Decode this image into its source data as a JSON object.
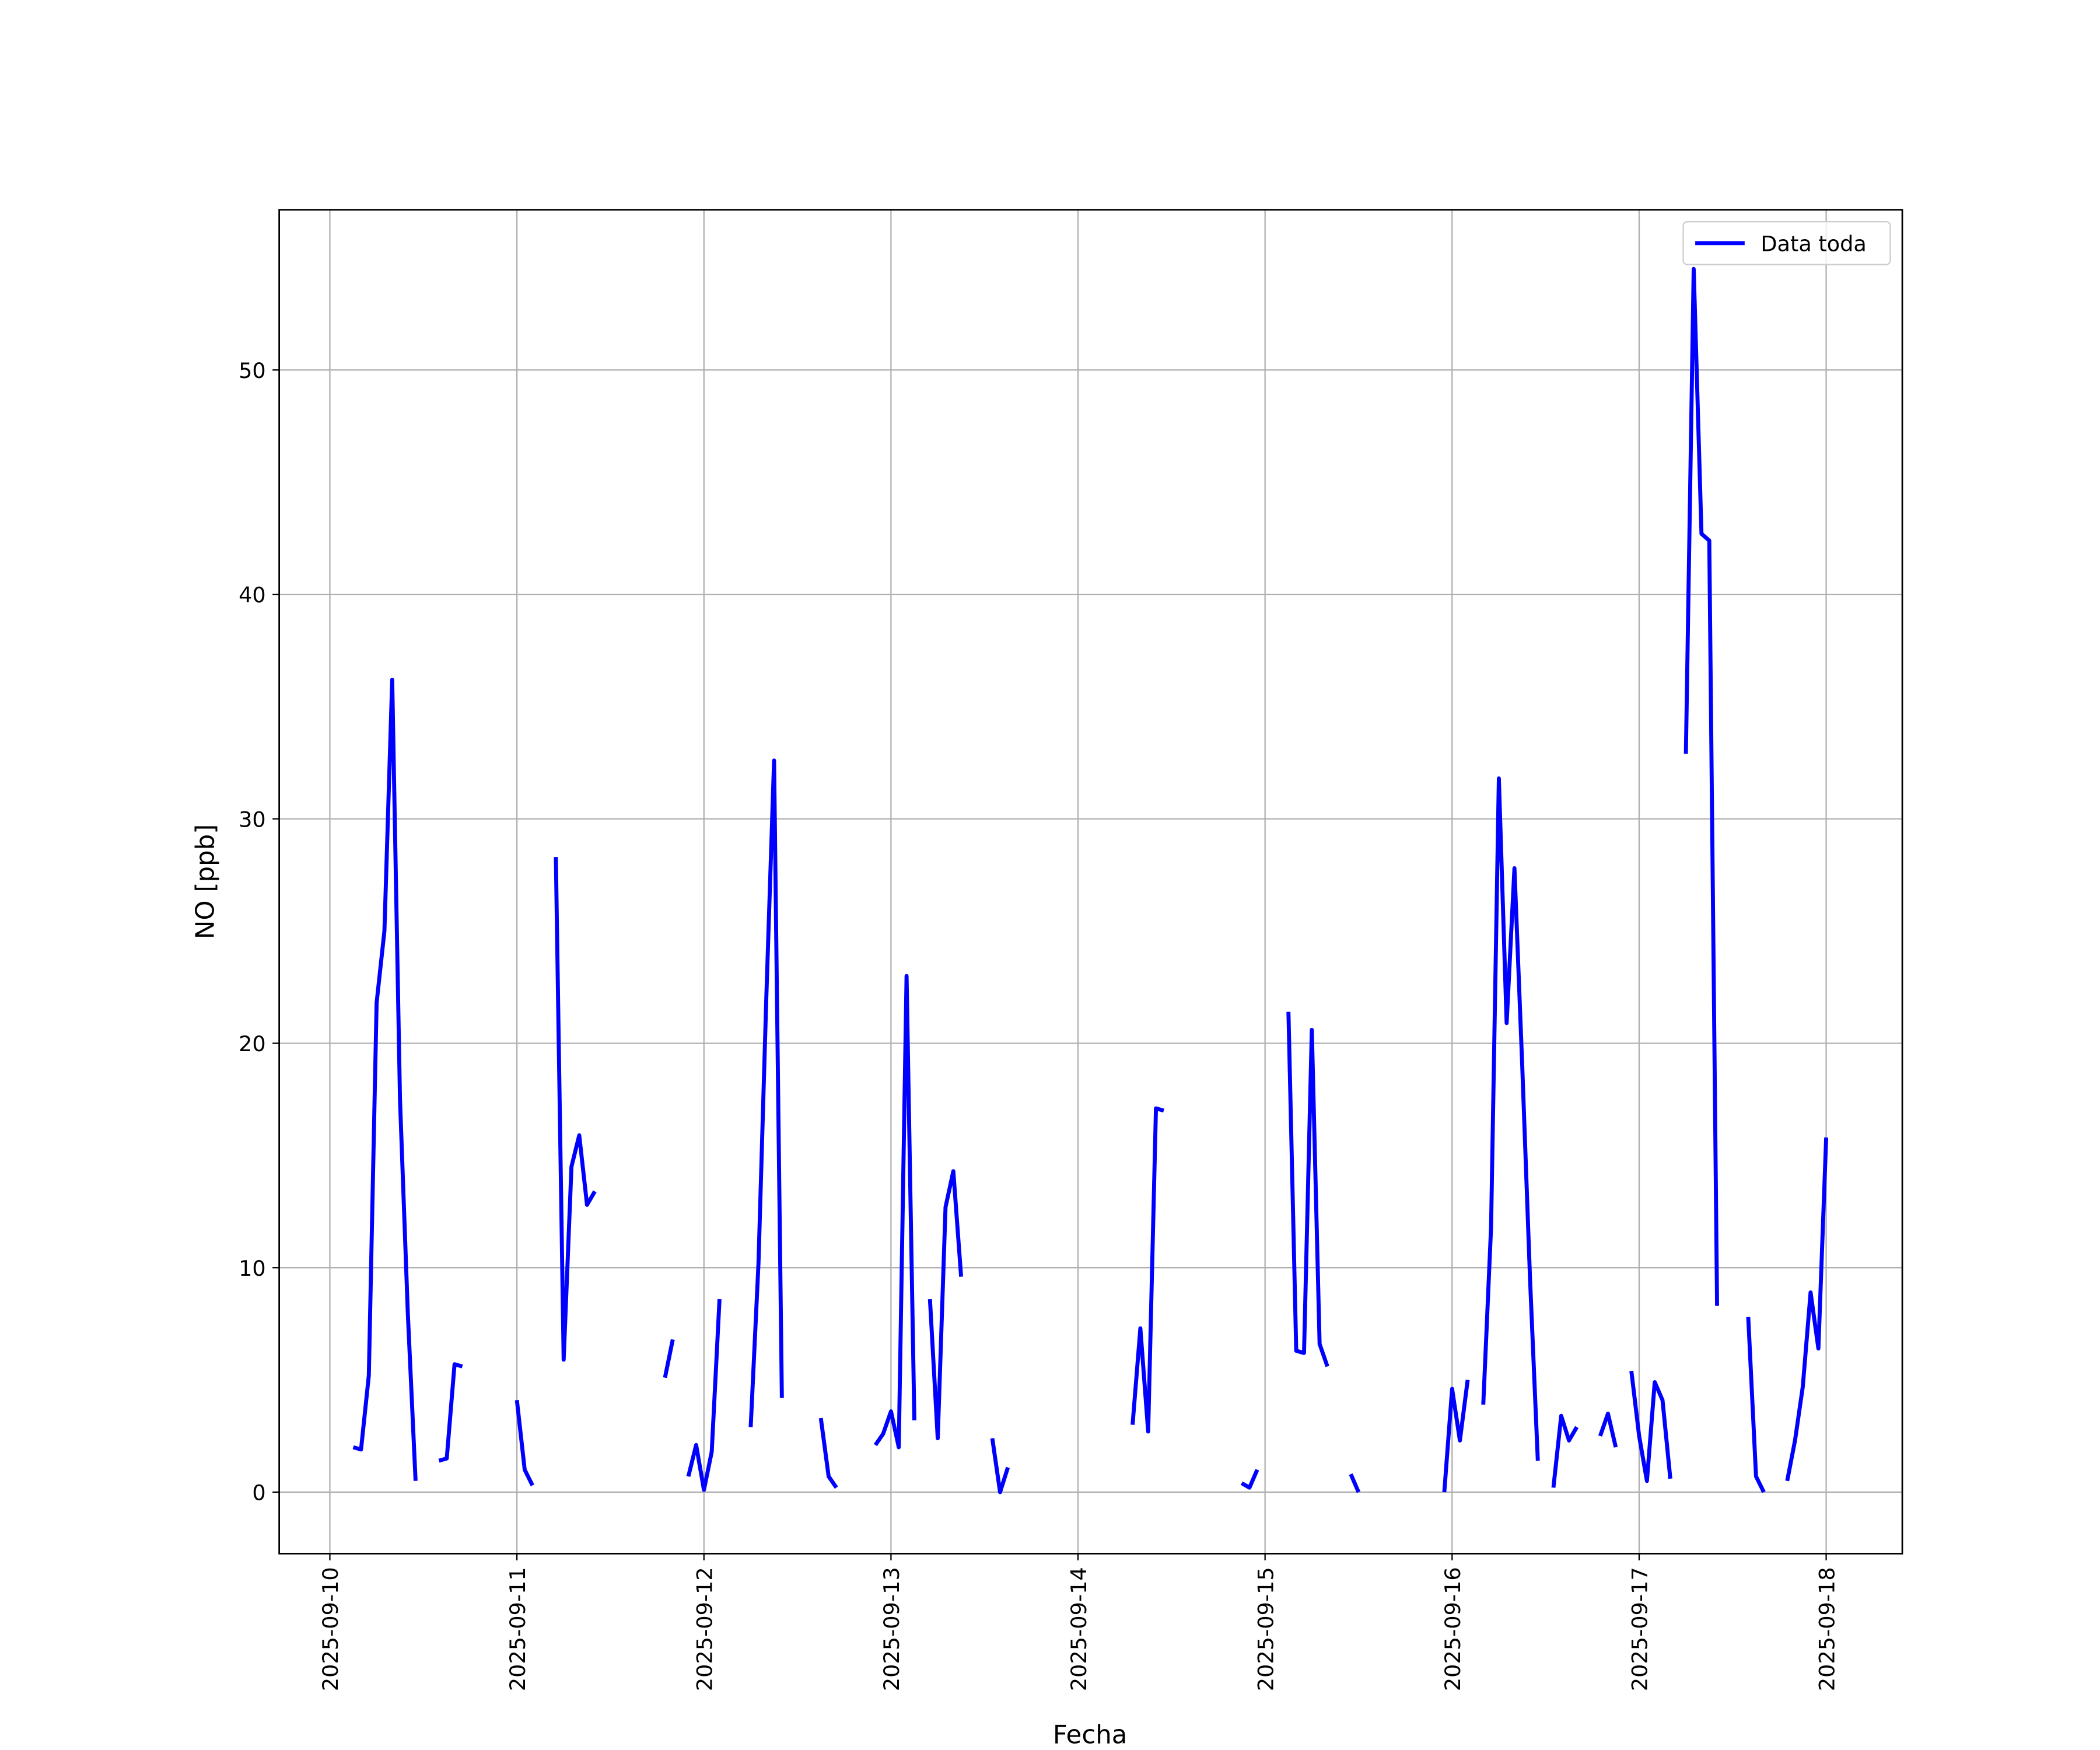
{
  "chart_data": {
    "type": "line",
    "x_label": "Fecha",
    "y_label": "NO [ppb]",
    "xlim": [
      "2025-09-09 17:30",
      "2025-09-18 09:46"
    ],
    "xticks": [
      "2025-09-10",
      "2025-09-11",
      "2025-09-12",
      "2025-09-13",
      "2025-09-14",
      "2025-09-15",
      "2025-09-16",
      "2025-09-17",
      "2025-09-18"
    ],
    "ylim": [
      -2.74,
      57.14
    ],
    "yticks": [
      0,
      10,
      20,
      30,
      40,
      50
    ],
    "grid": true,
    "legend": "upper right",
    "x": [
      "2025-09-10 03:00",
      "2025-09-10 04:00",
      "2025-09-10 05:00",
      "2025-09-10 06:00",
      "2025-09-10 07:00",
      "2025-09-10 08:00",
      "2025-09-10 09:00",
      "2025-09-10 10:00",
      "2025-09-10 11:00",
      "2025-09-10 12:00",
      "2025-09-10 14:00",
      "2025-09-10 15:00",
      "2025-09-10 16:00",
      "2025-09-10 17:00",
      "2025-09-10 18:00",
      "2025-09-11 00:00",
      "2025-09-11 01:00",
      "2025-09-11 02:00",
      "2025-09-11 03:00",
      "2025-09-11 05:00",
      "2025-09-11 06:00",
      "2025-09-11 07:00",
      "2025-09-11 08:00",
      "2025-09-11 09:00",
      "2025-09-11 10:00",
      "2025-09-11 11:00",
      "2025-09-11 19:00",
      "2025-09-11 20:00",
      "2025-09-11 21:00",
      "2025-09-11 22:00",
      "2025-09-11 23:00",
      "2025-09-12 00:00",
      "2025-09-12 01:00",
      "2025-09-12 02:00",
      "2025-09-12 03:00",
      "2025-09-12 06:00",
      "2025-09-12 07:00",
      "2025-09-12 08:00",
      "2025-09-12 09:00",
      "2025-09-12 10:00",
      "2025-09-12 11:00",
      "2025-09-12 15:00",
      "2025-09-12 16:00",
      "2025-09-12 17:00",
      "2025-09-12 18:00",
      "2025-09-12 22:00",
      "2025-09-12 23:00",
      "2025-09-13 00:00",
      "2025-09-13 01:00",
      "2025-09-13 02:00",
      "2025-09-13 03:00",
      "2025-09-13 04:00",
      "2025-09-13 05:00",
      "2025-09-13 06:00",
      "2025-09-13 07:00",
      "2025-09-13 08:00",
      "2025-09-13 09:00",
      "2025-09-13 10:00",
      "2025-09-13 13:00",
      "2025-09-13 14:00",
      "2025-09-13 15:00",
      "2025-09-13 16:00",
      "2025-09-14 07:00",
      "2025-09-14 08:00",
      "2025-09-14 09:00",
      "2025-09-14 10:00",
      "2025-09-14 11:00",
      "2025-09-14 12:00",
      "2025-09-14 21:00",
      "2025-09-14 22:00",
      "2025-09-14 23:00",
      "2025-09-15 00:00",
      "2025-09-15 03:00",
      "2025-09-15 04:00",
      "2025-09-15 05:00",
      "2025-09-15 06:00",
      "2025-09-15 07:00",
      "2025-09-15 08:00",
      "2025-09-15 09:00",
      "2025-09-15 11:00",
      "2025-09-15 12:00",
      "2025-09-15 13:00",
      "2025-09-15 23:00",
      "2025-09-16 00:00",
      "2025-09-16 01:00",
      "2025-09-16 02:00",
      "2025-09-16 03:00",
      "2025-09-16 04:00",
      "2025-09-16 05:00",
      "2025-09-16 06:00",
      "2025-09-16 07:00",
      "2025-09-16 08:00",
      "2025-09-16 09:00",
      "2025-09-16 10:00",
      "2025-09-16 11:00",
      "2025-09-16 12:00",
      "2025-09-16 13:00",
      "2025-09-16 14:00",
      "2025-09-16 15:00",
      "2025-09-16 16:00",
      "2025-09-16 17:00",
      "2025-09-16 19:00",
      "2025-09-16 20:00",
      "2025-09-16 21:00",
      "2025-09-16 22:00",
      "2025-09-16 23:00",
      "2025-09-17 00:00",
      "2025-09-17 01:00",
      "2025-09-17 02:00",
      "2025-09-17 03:00",
      "2025-09-17 04:00",
      "2025-09-17 05:00",
      "2025-09-17 06:00",
      "2025-09-17 07:00",
      "2025-09-17 08:00",
      "2025-09-17 09:00",
      "2025-09-17 10:00",
      "2025-09-17 11:00",
      "2025-09-17 14:00",
      "2025-09-17 15:00",
      "2025-09-17 16:00",
      "2025-09-17 17:00",
      "2025-09-17 19:00",
      "2025-09-17 20:00",
      "2025-09-17 21:00",
      "2025-09-17 22:00",
      "2025-09-17 23:00",
      "2025-09-18 00:00"
    ],
    "series": [
      {
        "name": "Data toda",
        "color": "#0000ff",
        "values": [
          2.0,
          1.9,
          5.2,
          21.8,
          25.0,
          36.2,
          17.5,
          8.0,
          0.5,
          null,
          1.4,
          1.5,
          5.7,
          5.6,
          null,
          4.1,
          1.0,
          0.3,
          null,
          28.3,
          5.9,
          14.5,
          15.9,
          12.8,
          13.4,
          null,
          5.1,
          6.8,
          null,
          0.7,
          2.1,
          0.1,
          1.8,
          8.6,
          null,
          2.9,
          10.2,
          22.0,
          32.6,
          4.2,
          null,
          3.3,
          0.7,
          0.2,
          null,
          2.1,
          2.6,
          3.6,
          2.0,
          23.0,
          3.2,
          null,
          8.6,
          2.4,
          12.7,
          14.3,
          9.6,
          null,
          2.4,
          0.0,
          1.1,
          null,
          3.0,
          7.3,
          2.7,
          17.1,
          17.0,
          null,
          0.4,
          0.2,
          1.0,
          null,
          21.4,
          6.3,
          6.2,
          20.6,
          6.6,
          5.6,
          null,
          0.8,
          0.0,
          null,
          0.0,
          4.6,
          2.3,
          5.0,
          null,
          3.9,
          11.8,
          31.8,
          20.9,
          27.8,
          19.0,
          9.5,
          1.4,
          null,
          0.2,
          3.4,
          2.3,
          2.9,
          null,
          2.5,
          3.5,
          2.0,
          null,
          5.4,
          2.5,
          0.5,
          4.9,
          4.1,
          0.6,
          null,
          32.9,
          54.5,
          42.7,
          42.4,
          8.3,
          null,
          7.8,
          0.7,
          0.0,
          null,
          0.5,
          2.3,
          4.7,
          8.9,
          6.4,
          15.8
        ]
      }
    ]
  }
}
